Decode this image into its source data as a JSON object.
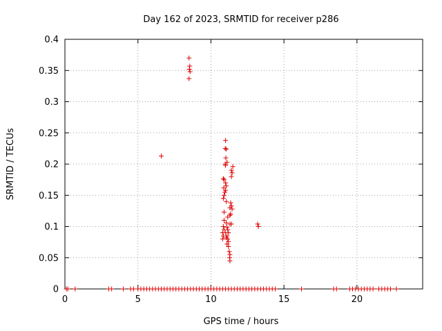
{
  "chart_data": {
    "type": "scatter",
    "title": "Day 162 of 2023, SRMTID for receiver p286",
    "xlabel": "GPS time / hours",
    "ylabel": "SRMTID / TECUs",
    "xlim": [
      0,
      24.5
    ],
    "ylim": [
      0,
      0.4
    ],
    "xticks": [
      0,
      5,
      10,
      15,
      20
    ],
    "xtick_labels": [
      "0",
      "5",
      "10",
      "15",
      "20"
    ],
    "yticks": [
      0,
      0.05,
      0.1,
      0.15,
      0.2,
      0.25,
      0.3,
      0.35,
      0.4
    ],
    "ytick_labels": [
      "0",
      "0.05",
      "0.1",
      "0.15",
      "0.2",
      "0.25",
      "0.3",
      "0.35",
      "0.4"
    ],
    "grid": true,
    "marker": "+",
    "color": "#dd0000",
    "series": [
      {
        "name": "p286",
        "points": [
          [
            8.5,
            0.37
          ],
          [
            8.55,
            0.357
          ],
          [
            8.52,
            0.352
          ],
          [
            8.57,
            0.348
          ],
          [
            8.5,
            0.337
          ],
          [
            6.6,
            0.213
          ],
          [
            11.0,
            0.238
          ],
          [
            10.98,
            0.225
          ],
          [
            11.05,
            0.224
          ],
          [
            11.02,
            0.21
          ],
          [
            10.98,
            0.2
          ],
          [
            11.1,
            0.203
          ],
          [
            11.0,
            0.198
          ],
          [
            10.85,
            0.177
          ],
          [
            10.9,
            0.175
          ],
          [
            11.0,
            0.17
          ],
          [
            11.05,
            0.165
          ],
          [
            10.88,
            0.162
          ],
          [
            11.0,
            0.158
          ],
          [
            10.95,
            0.155
          ],
          [
            10.9,
            0.15
          ],
          [
            10.85,
            0.145
          ],
          [
            11.05,
            0.14
          ],
          [
            10.9,
            0.123
          ],
          [
            11.15,
            0.115
          ],
          [
            10.9,
            0.11
          ],
          [
            11.05,
            0.106
          ],
          [
            10.85,
            0.1
          ],
          [
            10.9,
            0.095
          ],
          [
            10.8,
            0.09
          ],
          [
            10.85,
            0.085
          ],
          [
            10.8,
            0.08
          ],
          [
            11.1,
            0.099
          ],
          [
            11.15,
            0.095
          ],
          [
            11.2,
            0.09
          ],
          [
            11.1,
            0.085
          ],
          [
            11.15,
            0.08
          ],
          [
            11.2,
            0.076
          ],
          [
            11.1,
            0.072
          ],
          [
            11.2,
            0.068
          ],
          [
            11.25,
            0.06
          ],
          [
            11.3,
            0.055
          ],
          [
            11.28,
            0.05
          ],
          [
            11.3,
            0.045
          ],
          [
            11.0,
            0.09
          ],
          [
            11.05,
            0.082
          ],
          [
            11.3,
            0.104
          ],
          [
            11.4,
            0.104
          ],
          [
            11.35,
            0.12
          ],
          [
            11.3,
            0.13
          ],
          [
            11.4,
            0.133
          ],
          [
            11.45,
            0.128
          ],
          [
            11.35,
            0.138
          ],
          [
            11.3,
            0.118
          ],
          [
            11.4,
            0.18
          ],
          [
            11.45,
            0.186
          ],
          [
            11.5,
            0.196
          ],
          [
            11.4,
            0.19
          ],
          [
            13.2,
            0.104
          ],
          [
            13.25,
            0.1
          ],
          [
            0.1,
            0
          ],
          [
            0.2,
            0
          ],
          [
            0.7,
            0
          ],
          [
            3.0,
            0
          ],
          [
            3.2,
            0
          ],
          [
            4.0,
            0
          ],
          [
            4.5,
            0
          ],
          [
            4.7,
            0
          ],
          [
            5.0,
            0
          ],
          [
            5.2,
            0
          ],
          [
            5.4,
            0
          ],
          [
            5.6,
            0
          ],
          [
            5.8,
            0
          ],
          [
            6.0,
            0
          ],
          [
            6.2,
            0
          ],
          [
            6.4,
            0
          ],
          [
            6.6,
            0
          ],
          [
            6.8,
            0
          ],
          [
            7.0,
            0
          ],
          [
            7.2,
            0
          ],
          [
            7.4,
            0
          ],
          [
            7.6,
            0
          ],
          [
            7.8,
            0
          ],
          [
            8.0,
            0
          ],
          [
            8.2,
            0
          ],
          [
            8.4,
            0
          ],
          [
            8.6,
            0
          ],
          [
            8.8,
            0
          ],
          [
            9.0,
            0
          ],
          [
            9.2,
            0
          ],
          [
            9.4,
            0
          ],
          [
            9.6,
            0
          ],
          [
            9.8,
            0
          ],
          [
            10.0,
            0
          ],
          [
            10.2,
            0
          ],
          [
            10.4,
            0
          ],
          [
            10.6,
            0
          ],
          [
            10.8,
            0
          ],
          [
            11.0,
            0
          ],
          [
            11.2,
            0
          ],
          [
            11.4,
            0
          ],
          [
            11.6,
            0
          ],
          [
            11.8,
            0
          ],
          [
            12.0,
            0
          ],
          [
            12.2,
            0
          ],
          [
            12.4,
            0
          ],
          [
            12.6,
            0
          ],
          [
            12.8,
            0
          ],
          [
            13.0,
            0
          ],
          [
            13.2,
            0
          ],
          [
            13.4,
            0
          ],
          [
            13.6,
            0
          ],
          [
            13.8,
            0
          ],
          [
            14.0,
            0
          ],
          [
            14.2,
            0
          ],
          [
            14.4,
            0
          ],
          [
            16.2,
            0
          ],
          [
            18.4,
            0
          ],
          [
            18.6,
            0
          ],
          [
            19.5,
            0
          ],
          [
            19.7,
            0
          ],
          [
            19.9,
            0
          ],
          [
            20.1,
            0
          ],
          [
            20.3,
            0
          ],
          [
            20.5,
            0
          ],
          [
            20.7,
            0
          ],
          [
            20.9,
            0
          ],
          [
            21.1,
            0
          ],
          [
            21.5,
            0
          ],
          [
            21.7,
            0
          ],
          [
            21.9,
            0
          ],
          [
            22.1,
            0
          ],
          [
            22.3,
            0
          ],
          [
            22.7,
            0
          ]
        ]
      }
    ]
  }
}
